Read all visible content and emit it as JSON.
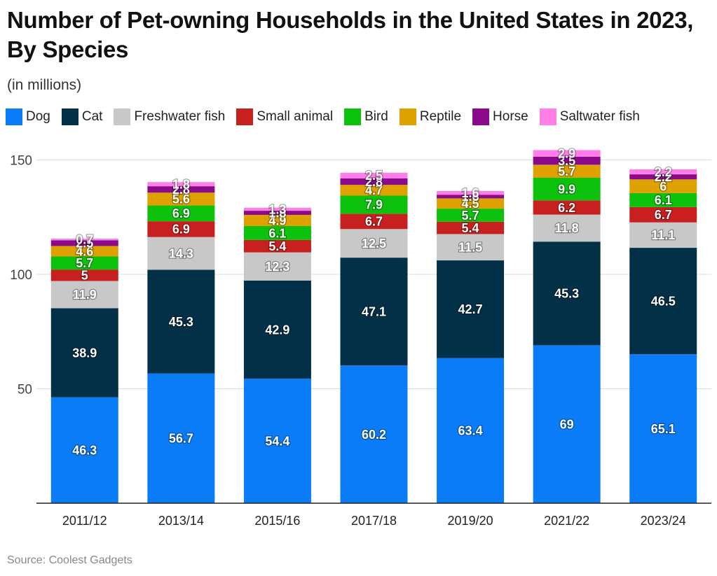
{
  "chart_data": {
    "type": "bar",
    "stacked": true,
    "title": "Number of Pet-owning Households in the United States in 2023, By Species",
    "subtitle": "(in millions)",
    "source": "Source: Coolest Gadgets",
    "categories": [
      "2011/12",
      "2013/14",
      "2015/16",
      "2017/18",
      "2019/20",
      "2021/22",
      "2023/24"
    ],
    "yticks": [
      "50",
      "100",
      "150"
    ],
    "ylim": [
      0,
      160
    ],
    "legend_position": "top",
    "series": [
      {
        "name": "Dog",
        "color": "#0a7cf7",
        "values": [
          46.3,
          56.7,
          54.4,
          60.2,
          63.4,
          69,
          65.1
        ]
      },
      {
        "name": "Cat",
        "color": "#023047",
        "values": [
          38.9,
          45.3,
          42.9,
          47.1,
          42.7,
          45.3,
          46.5
        ]
      },
      {
        "name": "Freshwater fish",
        "color": "#c8c8c8",
        "values": [
          11.9,
          14.3,
          12.3,
          12.5,
          11.5,
          11.8,
          11.1
        ]
      },
      {
        "name": "Small animal",
        "color": "#c8201e",
        "values": [
          5,
          6.9,
          5.4,
          6.7,
          5.4,
          6.2,
          6.7
        ]
      },
      {
        "name": "Bird",
        "color": "#0cc20c",
        "values": [
          5.7,
          6.9,
          6.1,
          7.9,
          5.7,
          9.9,
          6.1
        ]
      },
      {
        "name": "Reptile",
        "color": "#dea100",
        "values": [
          4.6,
          5.6,
          4.9,
          4.7,
          4.5,
          5.7,
          6
        ]
      },
      {
        "name": "Horse",
        "color": "#8b0a8b",
        "values": [
          2.5,
          2.8,
          1.8,
          2.8,
          1.6,
          3.5,
          2.2
        ]
      },
      {
        "name": "Saltwater fish",
        "color": "#ff7ee8",
        "values": [
          0.7,
          1.8,
          1.3,
          2.5,
          1.6,
          2.9,
          2.2
        ]
      }
    ]
  }
}
